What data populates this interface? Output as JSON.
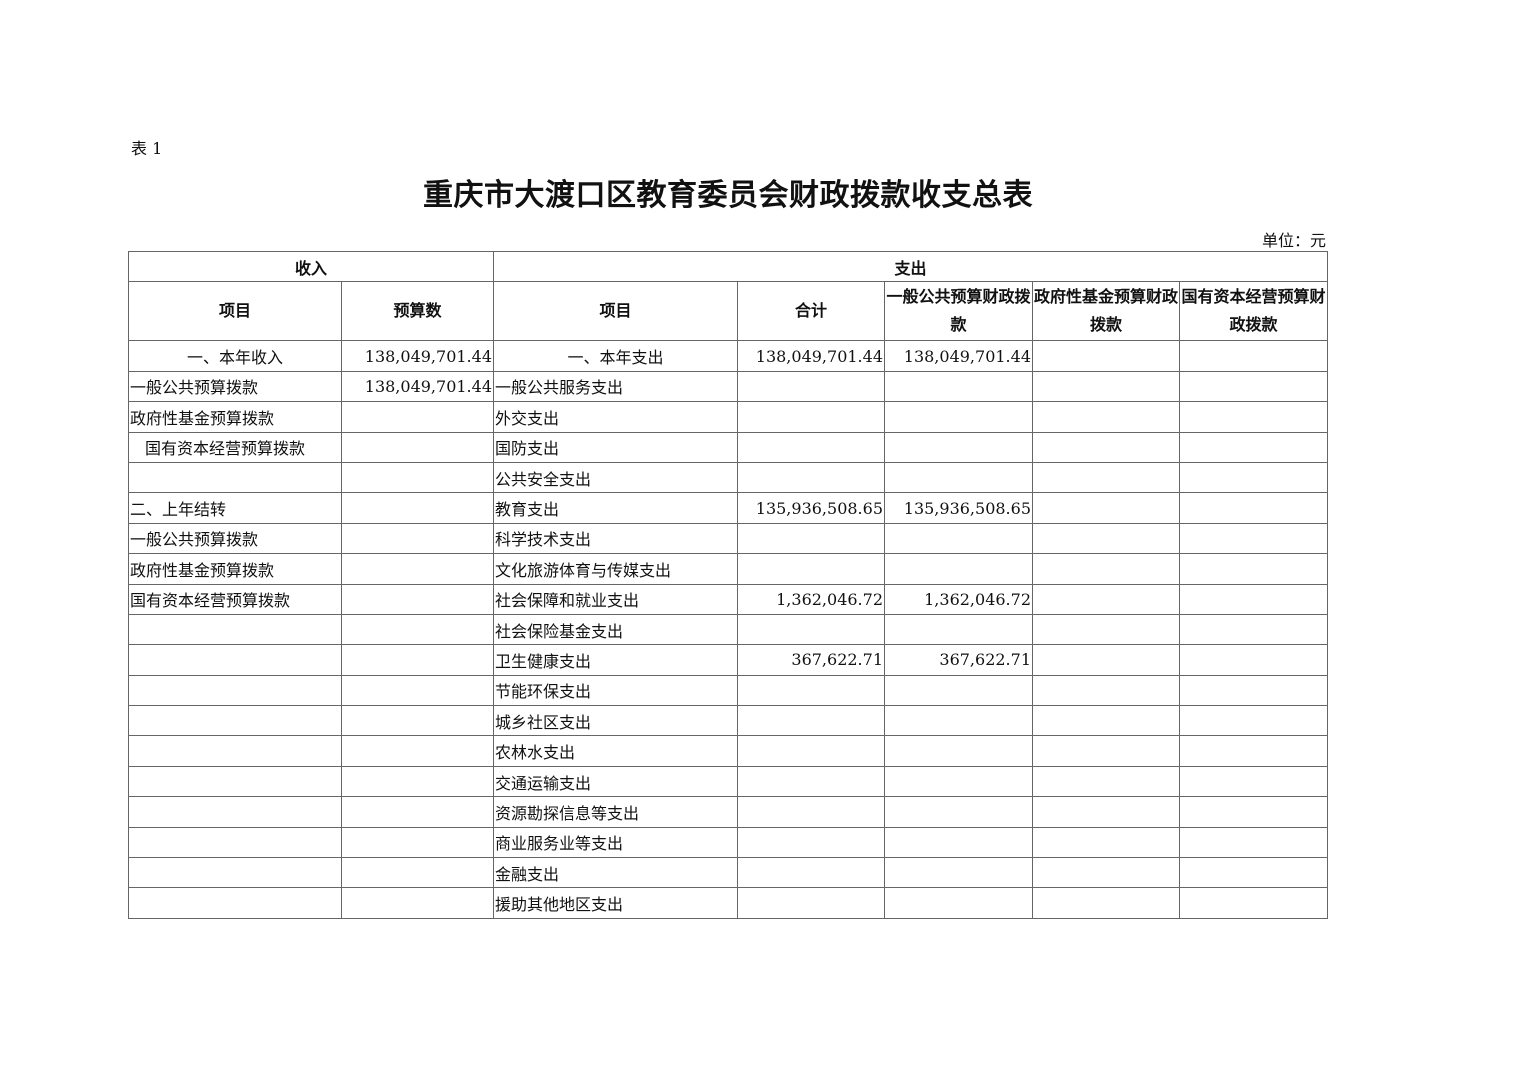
{
  "doc_label": "表 1",
  "title": "重庆市大渡口区教育委员会财政拨款收支总表",
  "unit": "单位：元",
  "header": {
    "income": "收入",
    "expense": "支出",
    "columns": [
      "项目",
      "预算数",
      "项目",
      "合计",
      "一般公共预算财政拨款",
      "政府性基金预算财政拨款",
      "国有资本经营预算财政拨款"
    ]
  },
  "rows": [
    [
      "一、本年收入",
      "138,049,701.44",
      "一、本年支出",
      "138,049,701.44",
      "138,049,701.44",
      "",
      ""
    ],
    [
      "一般公共预算拨款",
      "138,049,701.44",
      "一般公共服务支出",
      "",
      "",
      "",
      ""
    ],
    [
      "政府性基金预算拨款",
      "",
      "外交支出",
      "",
      "",
      "",
      ""
    ],
    [
      "国有资本经营预算拨款",
      "",
      "国防支出",
      "",
      "",
      "",
      ""
    ],
    [
      "",
      "",
      "公共安全支出",
      "",
      "",
      "",
      ""
    ],
    [
      "二、上年结转",
      "",
      "教育支出",
      "135,936,508.65",
      "135,936,508.65",
      "",
      ""
    ],
    [
      "一般公共预算拨款",
      "",
      "科学技术支出",
      "",
      "",
      "",
      ""
    ],
    [
      "政府性基金预算拨款",
      "",
      "文化旅游体育与传媒支出",
      "",
      "",
      "",
      ""
    ],
    [
      "国有资本经营预算拨款",
      "",
      "社会保障和就业支出",
      "1,362,046.72",
      "1,362,046.72",
      "",
      ""
    ],
    [
      "",
      "",
      "社会保险基金支出",
      "",
      "",
      "",
      ""
    ],
    [
      "",
      "",
      "卫生健康支出",
      "367,622.71",
      "367,622.71",
      "",
      ""
    ],
    [
      "",
      "",
      "节能环保支出",
      "",
      "",
      "",
      ""
    ],
    [
      "",
      "",
      "城乡社区支出",
      "",
      "",
      "",
      ""
    ],
    [
      "",
      "",
      "农林水支出",
      "",
      "",
      "",
      ""
    ],
    [
      "",
      "",
      "交通运输支出",
      "",
      "",
      "",
      ""
    ],
    [
      "",
      "",
      "资源勘探信息等支出",
      "",
      "",
      "",
      ""
    ],
    [
      "",
      "",
      "商业服务业等支出",
      "",
      "",
      "",
      ""
    ],
    [
      "",
      "",
      "金融支出",
      "",
      "",
      "",
      ""
    ],
    [
      "",
      "",
      "援助其他地区支出",
      "",
      "",
      "",
      ""
    ]
  ]
}
